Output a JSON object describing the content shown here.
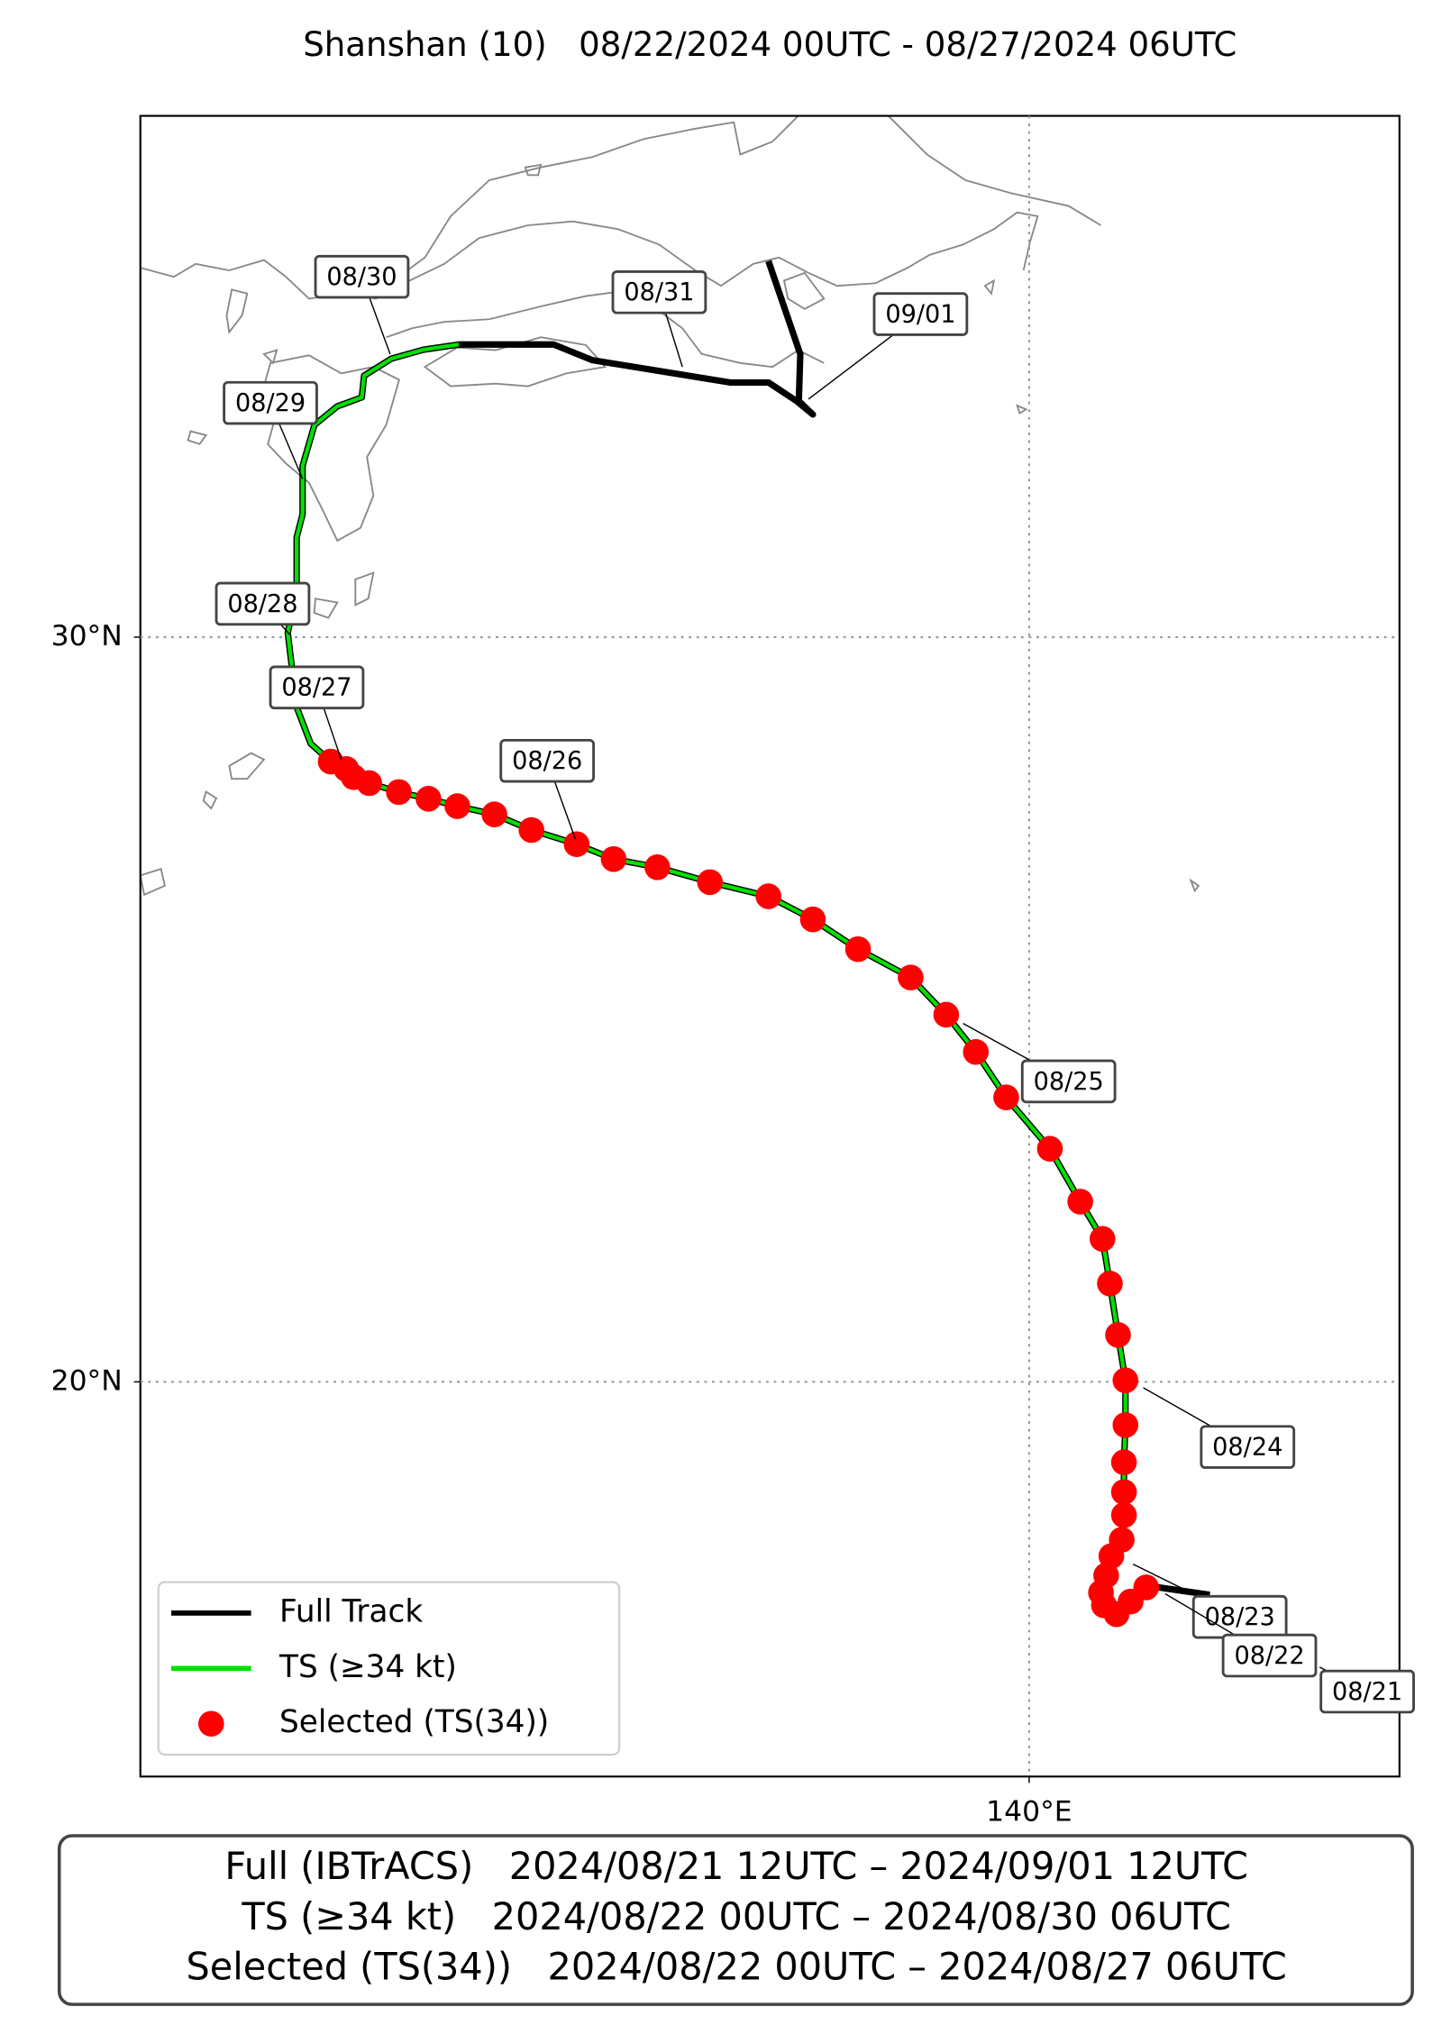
{
  "chart_data": {
    "type": "track",
    "title": "Shanshan (10)   08/22/2024 00UTC - 08/27/2024 06UTC",
    "xlim": [
      128,
      145
    ],
    "ylim": [
      14.7,
      37
    ],
    "xticks": [
      {
        "value": 140,
        "label": "140°E"
      }
    ],
    "yticks": [
      {
        "value": 20,
        "label": "20°N"
      },
      {
        "value": 30,
        "label": "30°N"
      }
    ],
    "grid": true,
    "legend": "lower left",
    "series": [
      {
        "name": "Full Track",
        "color": "#000000",
        "kind": "line",
        "lon": [
          142.44,
          141.75,
          141.58,
          141.37,
          141.18,
          141.01,
          140.97,
          141.04,
          141.11,
          141.25,
          141.28,
          141.28,
          141.28,
          141.3,
          141.3,
          141.2,
          141.09,
          140.99,
          140.69,
          140.28,
          139.69,
          139.28,
          138.88,
          138.4,
          137.69,
          137.08,
          136.48,
          135.69,
          134.98,
          134.39,
          133.89,
          133.28,
          132.78,
          132.28,
          131.89,
          131.49,
          131.09,
          130.88,
          130.78,
          130.57,
          130.3,
          130.11,
          129.99,
          130.11,
          130.11,
          130.19,
          130.19,
          130.35,
          130.66,
          130.99,
          131.02,
          131.39,
          131.82,
          132.3,
          133.58,
          134.1,
          135.96,
          136.48,
          136.86,
          137.08,
          136.89,
          136.91,
          136.48
        ],
        "lat": [
          17.14,
          17.24,
          17.24,
          17.05,
          16.88,
          17.0,
          17.17,
          17.4,
          17.66,
          17.88,
          18.21,
          18.52,
          18.92,
          19.42,
          20.02,
          20.63,
          21.32,
          21.92,
          22.42,
          23.13,
          23.82,
          24.43,
          24.93,
          25.43,
          25.81,
          26.21,
          26.52,
          26.71,
          26.91,
          27.02,
          27.22,
          27.41,
          27.62,
          27.73,
          27.83,
          27.92,
          28.04,
          28.12,
          28.23,
          28.33,
          28.57,
          29.06,
          30.06,
          30.61,
          31.34,
          31.65,
          32.3,
          32.85,
          33.1,
          33.22,
          33.51,
          33.74,
          33.86,
          33.93,
          33.93,
          33.72,
          33.42,
          33.42,
          33.17,
          32.99,
          33.17,
          33.8,
          35.05
        ]
      },
      {
        "name": "TS (≥34 kt)",
        "color": "#00e000",
        "kind": "line",
        "lon": [
          141.58,
          141.37,
          141.18,
          141.01,
          140.97,
          141.04,
          141.11,
          141.25,
          141.28,
          141.28,
          141.28,
          141.3,
          141.3,
          141.2,
          141.09,
          140.99,
          140.69,
          140.28,
          139.69,
          139.28,
          138.88,
          138.4,
          137.69,
          137.08,
          136.48,
          135.69,
          134.98,
          134.39,
          133.89,
          133.28,
          132.78,
          132.28,
          131.89,
          131.49,
          131.09,
          130.88,
          130.78,
          130.57,
          130.3,
          130.11,
          129.99,
          130.11,
          130.11,
          130.19,
          130.19,
          130.35,
          130.66,
          130.99,
          131.02,
          131.39,
          131.82,
          132.3
        ],
        "lat": [
          17.24,
          17.05,
          16.88,
          17.0,
          17.17,
          17.4,
          17.66,
          17.88,
          18.21,
          18.52,
          18.92,
          19.42,
          20.02,
          20.63,
          21.32,
          21.92,
          22.42,
          23.13,
          23.82,
          24.43,
          24.93,
          25.43,
          25.81,
          26.21,
          26.52,
          26.71,
          26.91,
          27.02,
          27.22,
          27.41,
          27.62,
          27.73,
          27.83,
          27.92,
          28.04,
          28.12,
          28.23,
          28.33,
          28.57,
          29.06,
          30.06,
          30.61,
          31.34,
          31.65,
          32.3,
          32.85,
          33.1,
          33.22,
          33.51,
          33.74,
          33.86,
          33.93
        ]
      },
      {
        "name": "Selected (TS(34))",
        "color": "#ff0000",
        "kind": "scatter",
        "lon": [
          141.58,
          141.37,
          141.18,
          141.01,
          140.97,
          141.04,
          141.11,
          141.25,
          141.28,
          141.28,
          141.28,
          141.3,
          141.3,
          141.2,
          141.09,
          140.99,
          140.69,
          140.28,
          139.69,
          139.28,
          138.88,
          138.4,
          137.69,
          137.08,
          136.48,
          135.69,
          134.98,
          134.39,
          133.89,
          133.28,
          132.78,
          132.28,
          131.89,
          131.49,
          131.09,
          130.88,
          130.78,
          130.57
        ],
        "lat": [
          17.24,
          17.05,
          16.88,
          17.0,
          17.17,
          17.4,
          17.66,
          17.88,
          18.21,
          18.52,
          18.92,
          19.42,
          20.02,
          20.63,
          21.32,
          21.92,
          22.42,
          23.13,
          23.82,
          24.43,
          24.93,
          25.43,
          25.81,
          26.21,
          26.52,
          26.71,
          26.91,
          27.02,
          27.22,
          27.41,
          27.62,
          27.73,
          27.83,
          27.92,
          28.04,
          28.12,
          28.23,
          28.33
        ]
      }
    ],
    "date_labels": [
      "08/30",
      "08/31",
      "09/01",
      "08/29",
      "08/28",
      "08/27",
      "08/26",
      "08/25",
      "08/24",
      "08/23",
      "08/22",
      "08/21"
    ],
    "summary": [
      "Full (IBTrACS)   2024/08/21 12UTC – 2024/09/01 12UTC",
      "TS (≥34 kt)   2024/08/22 00UTC – 2024/08/30 06UTC",
      "Selected (TS(34))   2024/08/22 00UTC – 2024/08/27 06UTC"
    ]
  }
}
